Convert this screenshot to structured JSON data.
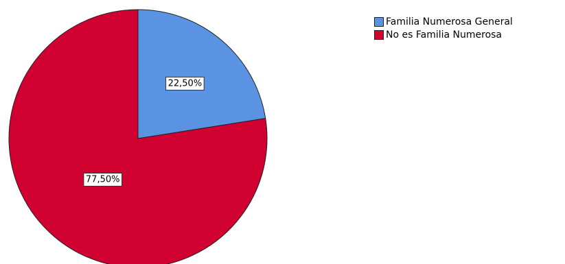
{
  "chart_data": {
    "type": "pie",
    "categories": [
      "Familia Numerosa General",
      "No es Familia Numerosa"
    ],
    "values": [
      22.5,
      77.5
    ],
    "data_labels": [
      "22,50%",
      "77,50%"
    ],
    "colors": [
      "#5b93e3",
      "#d00030"
    ],
    "legend_placement": "top-right",
    "start_angle": "12 o'clock",
    "direction": "clockwise"
  }
}
